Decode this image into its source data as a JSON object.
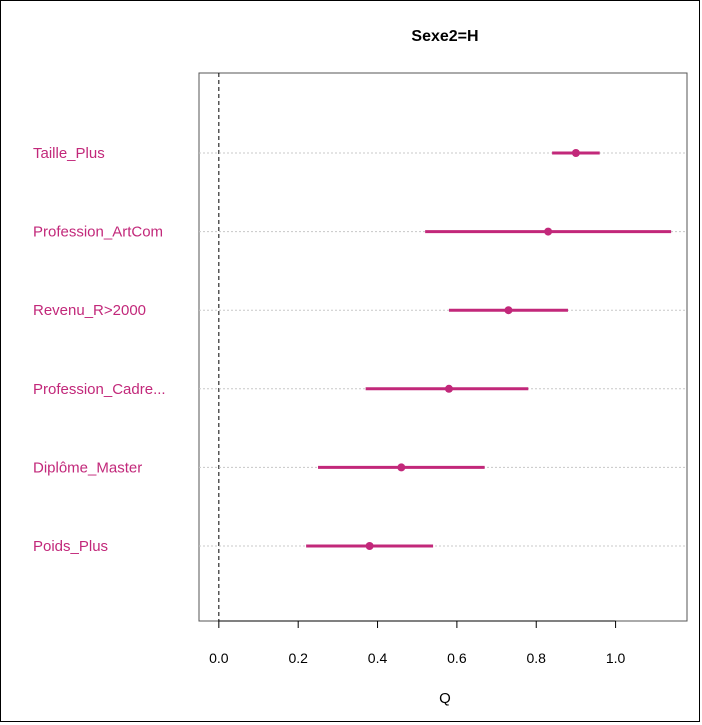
{
  "chart_data": {
    "type": "scatter",
    "title": "Sexe2=H",
    "xlabel": "Q",
    "ylabel": "",
    "xlim": [
      -0.05,
      1.18
    ],
    "xticks": [
      "0.0",
      "0.2",
      "0.4",
      "0.6",
      "0.8",
      "1.0"
    ],
    "reference_line_x": 0,
    "grid": "horizontal-dotted",
    "color": "#c2287a",
    "categories": [
      "Taille_Plus",
      "Profession_ArtCom",
      "Revenu_R>2000",
      "Profession_Cadre...",
      "Diplôme_Master",
      "Poids_Plus"
    ],
    "estimates": [
      0.9,
      0.83,
      0.73,
      0.58,
      0.46,
      0.38
    ],
    "lower": [
      0.84,
      0.52,
      0.58,
      0.37,
      0.25,
      0.22
    ],
    "upper": [
      0.96,
      1.14,
      0.88,
      0.78,
      0.67,
      0.54
    ]
  }
}
